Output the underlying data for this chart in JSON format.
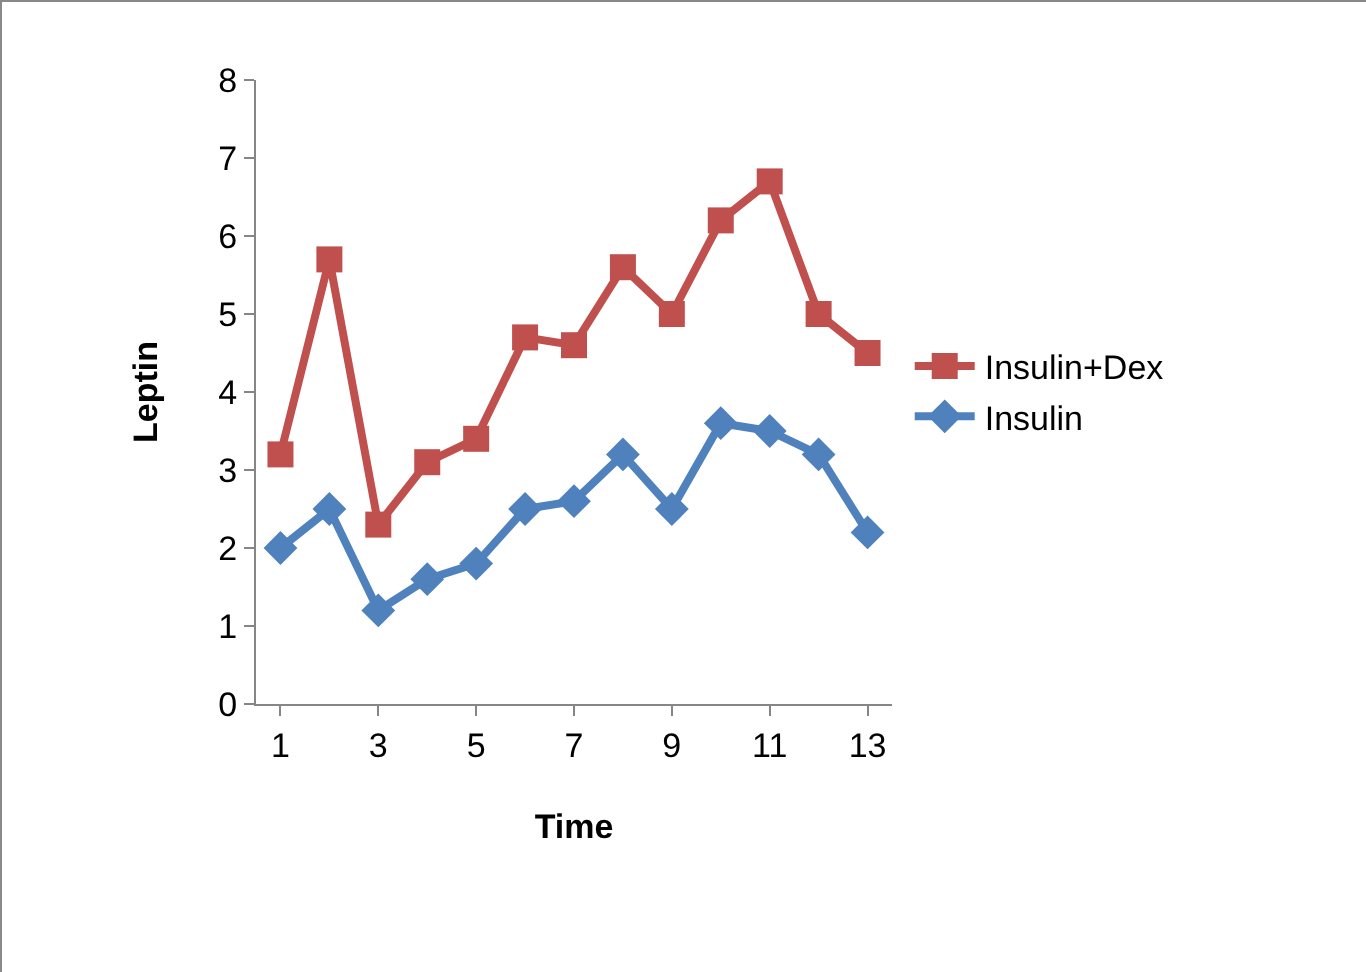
{
  "chart_data": {
    "type": "line",
    "xlabel": "Time",
    "ylabel": "Leptin",
    "x": [
      1,
      2,
      3,
      4,
      5,
      6,
      7,
      8,
      9,
      10,
      11,
      12,
      13
    ],
    "series": [
      {
        "name": "Insulin+Dex",
        "color": "#c0504d",
        "marker": "square",
        "values": [
          3.2,
          5.7,
          2.3,
          3.1,
          3.4,
          4.7,
          4.6,
          5.6,
          5.0,
          6.2,
          6.7,
          5.0,
          4.5
        ]
      },
      {
        "name": "Insulin",
        "color": "#4f81bd",
        "marker": "diamond",
        "values": [
          2.0,
          2.5,
          1.2,
          1.6,
          1.8,
          2.5,
          2.6,
          3.2,
          2.5,
          3.6,
          3.5,
          3.2,
          2.2
        ]
      }
    ],
    "xlim": [
      0.5,
      13.5
    ],
    "xticks": [
      1,
      3,
      5,
      7,
      9,
      11,
      13
    ],
    "ylim": [
      0,
      8
    ],
    "yticks": [
      0,
      1,
      2,
      3,
      4,
      5,
      6,
      7,
      8
    ],
    "grid": false,
    "legend": "right",
    "line_style": "solid"
  }
}
